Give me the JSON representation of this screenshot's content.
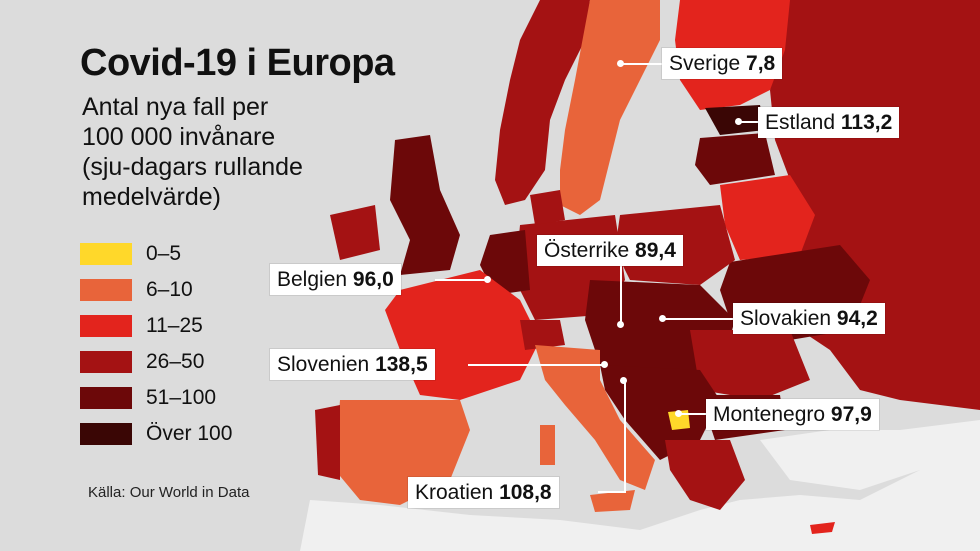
{
  "title": "Covid-19 i Europa",
  "subtitle_lines": [
    "Antal nya fall per",
    "100 000 invånare",
    "(sju-dagars rullande",
    "medelvärde)"
  ],
  "legend": [
    {
      "label": "0–5",
      "color": "#ffd82a"
    },
    {
      "label": "6–10",
      "color": "#e8643a"
    },
    {
      "label": "11–25",
      "color": "#e3241d"
    },
    {
      "label": "26–50",
      "color": "#a41213"
    },
    {
      "label": "51–100",
      "color": "#6c0809"
    },
    {
      "label": "Över 100",
      "color": "#3a0605"
    }
  ],
  "colors": {
    "sea": "#dcdcdc",
    "non_europe_land": "#f0f0f0"
  },
  "callouts": {
    "sverige": {
      "name": "Sverige",
      "value": "7,8"
    },
    "estland": {
      "name": "Estland",
      "value": "113,2"
    },
    "osterrike": {
      "name": "Österrike",
      "value": "89,4"
    },
    "belgien": {
      "name": "Belgien",
      "value": "96,0"
    },
    "slovakien": {
      "name": "Slovakien",
      "value": "94,2"
    },
    "slovenien": {
      "name": "Slovenien",
      "value": "138,5"
    },
    "montenegro": {
      "name": "Montenegro",
      "value": "97,9"
    },
    "kroatien": {
      "name": "Kroatien",
      "value": "108,8"
    }
  },
  "source": "Källa: Our World in Data"
}
